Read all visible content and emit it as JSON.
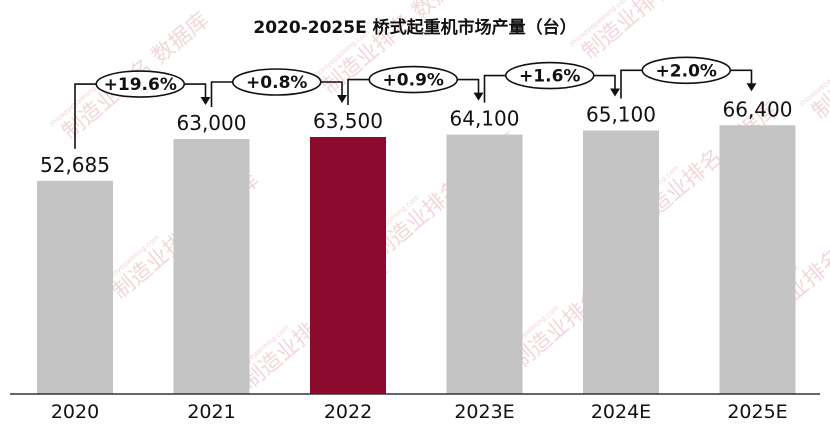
{
  "chart_data": {
    "type": "bar",
    "title": "2020-2025E 桥式起重机市场产量（台）",
    "categories": [
      "2020",
      "2021",
      "2022",
      "2023E",
      "2024E",
      "2025E"
    ],
    "values": [
      52685,
      63000,
      63500,
      64100,
      65100,
      66400
    ],
    "value_labels": [
      "52,685",
      "63,000",
      "63,500",
      "64,100",
      "65,100",
      "66,400"
    ],
    "growth_labels": [
      "+19.6%",
      "+0.8%",
      "+0.9%",
      "+1.6%",
      "+2.0%"
    ],
    "highlight_index": 2,
    "ylim": [
      0,
      70000
    ],
    "xlabel": "",
    "ylabel": "",
    "grid": false,
    "colors": {
      "bar": "#c4c4c4",
      "highlight": "#8c0a2e",
      "axis": "#333333",
      "arrow": "#111111"
    }
  },
  "watermark": {
    "text": "制造业排名 数据库",
    "site": "zhizaoyepaiming.com"
  }
}
